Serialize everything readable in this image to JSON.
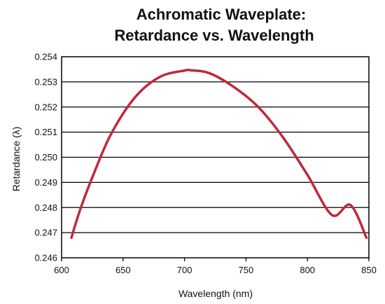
{
  "colors": {
    "line": "#c0283c",
    "grid": "#000000",
    "frame": "#000000",
    "text": "#111111",
    "background": "#ffffff"
  },
  "chart_data": {
    "type": "line",
    "title": [
      "Achromatic Waveplate:",
      "Retardance vs. Wavelength"
    ],
    "xlabel": "Wavelength (nm)",
    "ylabel": "Retardance (λ)",
    "xlim": [
      600,
      850
    ],
    "ylim": [
      0.246,
      0.254
    ],
    "xticks": [
      600,
      650,
      700,
      750,
      800,
      850
    ],
    "xtick_labels": [
      "600",
      "650",
      "700",
      "750",
      "800",
      "850"
    ],
    "yticks": [
      0.246,
      0.247,
      0.248,
      0.249,
      0.25,
      0.251,
      0.252,
      0.253,
      0.254
    ],
    "ytick_labels": [
      "0.246",
      "0.247",
      "0.248",
      "0.249",
      "0.250",
      "0.251",
      "0.252",
      "0.253",
      "0.254"
    ],
    "grid": "horizontal",
    "legend": "none",
    "series": [
      {
        "x": [
          608,
          615,
          625,
          640,
          660,
          680,
          700,
          705,
          720,
          740,
          760,
          780,
          800,
          820,
          835,
          848
        ],
        "y": [
          0.2468,
          0.2479,
          0.2492,
          0.2509,
          0.2524,
          0.2532,
          0.25345,
          0.25346,
          0.25335,
          0.2528,
          0.252,
          0.2508,
          0.2493,
          0.2477,
          0.2481,
          0.2468
        ]
      }
    ]
  }
}
